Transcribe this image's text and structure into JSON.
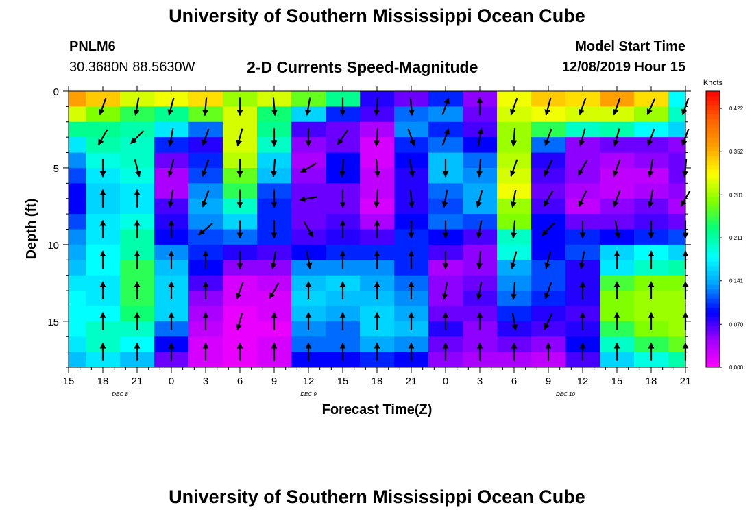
{
  "page": {
    "title_top": "University of Southern Mississippi Ocean Cube",
    "title_bottom": "University of Southern Mississippi Ocean Cube",
    "station": "PNLM6",
    "coords": "30.3680N 88.5630W",
    "subtitle": "2-D Currents Speed-Magnitude",
    "model_label": "Model Start Time",
    "model_time": "12/08/2019 Hour 15"
  },
  "chart_data": {
    "type": "heatmap",
    "title": "2-D Currents Speed-Magnitude",
    "xlabel": "Forecast Time(Z)",
    "ylabel": "Depth (ft)",
    "x_hours_from_start": [
      0,
      54
    ],
    "xlim_hours": [
      0,
      54
    ],
    "x_tick_labels": [
      "15",
      "18",
      "21",
      "0",
      "3",
      "6",
      "9",
      "12",
      "15",
      "18",
      "21",
      "0",
      "3",
      "6",
      "9",
      "12",
      "15",
      "18",
      "21"
    ],
    "x_date_labels": [
      {
        "label": "DEC 8",
        "hour": 4.5
      },
      {
        "label": "DEC 9",
        "hour": 21
      },
      {
        "label": "DEC 10",
        "hour": 43.5
      }
    ],
    "y_ticks": [
      0,
      5,
      10,
      15
    ],
    "ylim_ft": [
      0,
      18
    ],
    "y_inverted": true,
    "colorbar": {
      "unit": "Knots",
      "min": 0.0,
      "max": 0.45,
      "tick_values": [
        0.0,
        0.07,
        0.141,
        0.211,
        0.281,
        0.352,
        0.422
      ],
      "tick_labels": [
        "0.000",
        "0.070",
        "0.141",
        "0.211",
        "0.281",
        "0.352",
        "0.422"
      ],
      "colors": [
        "#ff00ff",
        "#a000ff",
        "#0000ff",
        "#00a0ff",
        "#00ffff",
        "#00ff80",
        "#80ff00",
        "#ffff00",
        "#ffa000",
        "#ff6000",
        "#ff0000"
      ]
    },
    "depth_levels_ft": [
      0.5,
      1.5,
      2.5,
      3.5,
      4.5,
      5.5,
      6.5,
      7.5,
      8.5,
      9.5,
      10.5,
      11.5,
      12.5,
      13.5,
      14.5,
      15.5,
      16.5,
      17.5
    ],
    "time_hours": [
      0,
      3,
      6,
      9,
      12,
      15,
      18,
      21,
      24,
      27,
      30,
      33,
      36,
      39,
      42,
      45,
      48,
      51,
      54
    ],
    "speed_knots": [
      [
        0.36,
        0.34,
        0.3,
        0.31,
        0.33,
        0.28,
        0.3,
        0.26,
        0.22,
        0.08,
        0.06,
        0.1,
        0.05,
        0.31,
        0.34,
        0.33,
        0.36,
        0.33,
        0.18
      ],
      [
        0.3,
        0.27,
        0.24,
        0.22,
        0.26,
        0.3,
        0.23,
        0.16,
        0.1,
        0.07,
        0.12,
        0.13,
        0.06,
        0.3,
        0.31,
        0.3,
        0.3,
        0.28,
        0.2
      ],
      [
        0.22,
        0.22,
        0.21,
        0.17,
        0.12,
        0.3,
        0.22,
        0.07,
        0.06,
        0.04,
        0.13,
        0.1,
        0.07,
        0.28,
        0.24,
        0.2,
        0.21,
        0.18,
        0.16
      ],
      [
        0.17,
        0.21,
        0.2,
        0.1,
        0.08,
        0.3,
        0.2,
        0.05,
        0.06,
        0.02,
        0.1,
        0.12,
        0.09,
        0.28,
        0.12,
        0.05,
        0.06,
        0.06,
        0.05
      ],
      [
        0.13,
        0.19,
        0.2,
        0.06,
        0.1,
        0.29,
        0.16,
        0.04,
        0.09,
        0.02,
        0.09,
        0.15,
        0.12,
        0.29,
        0.08,
        0.05,
        0.04,
        0.05,
        0.06
      ],
      [
        0.11,
        0.17,
        0.19,
        0.04,
        0.11,
        0.26,
        0.15,
        0.05,
        0.09,
        0.03,
        0.08,
        0.15,
        0.13,
        0.3,
        0.07,
        0.05,
        0.03,
        0.03,
        0.06
      ],
      [
        0.09,
        0.16,
        0.17,
        0.04,
        0.13,
        0.24,
        0.11,
        0.06,
        0.06,
        0.03,
        0.08,
        0.12,
        0.14,
        0.31,
        0.06,
        0.04,
        0.03,
        0.04,
        0.05
      ],
      [
        0.09,
        0.16,
        0.17,
        0.07,
        0.14,
        0.2,
        0.1,
        0.06,
        0.06,
        0.02,
        0.08,
        0.11,
        0.14,
        0.28,
        0.07,
        0.03,
        0.05,
        0.06,
        0.04
      ],
      [
        0.11,
        0.17,
        0.19,
        0.08,
        0.13,
        0.16,
        0.1,
        0.06,
        0.07,
        0.04,
        0.09,
        0.12,
        0.11,
        0.27,
        0.09,
        0.06,
        0.06,
        0.07,
        0.06
      ],
      [
        0.13,
        0.17,
        0.21,
        0.09,
        0.11,
        0.12,
        0.1,
        0.07,
        0.08,
        0.07,
        0.1,
        0.09,
        0.07,
        0.2,
        0.09,
        0.1,
        0.09,
        0.1,
        0.11
      ],
      [
        0.14,
        0.18,
        0.21,
        0.13,
        0.1,
        0.08,
        0.07,
        0.09,
        0.1,
        0.1,
        0.1,
        0.07,
        0.05,
        0.19,
        0.09,
        0.11,
        0.16,
        0.18,
        0.16
      ],
      [
        0.15,
        0.18,
        0.24,
        0.15,
        0.09,
        0.05,
        0.05,
        0.13,
        0.13,
        0.13,
        0.1,
        0.04,
        0.05,
        0.14,
        0.11,
        0.08,
        0.17,
        0.2,
        0.21
      ],
      [
        0.17,
        0.17,
        0.24,
        0.16,
        0.07,
        0.02,
        0.03,
        0.15,
        0.16,
        0.14,
        0.12,
        0.05,
        0.06,
        0.13,
        0.11,
        0.08,
        0.25,
        0.27,
        0.27
      ],
      [
        0.18,
        0.17,
        0.24,
        0.16,
        0.05,
        0.02,
        0.02,
        0.16,
        0.15,
        0.15,
        0.13,
        0.05,
        0.07,
        0.12,
        0.1,
        0.08,
        0.27,
        0.28,
        0.28
      ],
      [
        0.18,
        0.18,
        0.23,
        0.16,
        0.04,
        0.01,
        0.02,
        0.15,
        0.14,
        0.16,
        0.14,
        0.06,
        0.06,
        0.1,
        0.08,
        0.07,
        0.27,
        0.28,
        0.28
      ],
      [
        0.18,
        0.2,
        0.2,
        0.12,
        0.03,
        0.01,
        0.01,
        0.13,
        0.12,
        0.16,
        0.15,
        0.08,
        0.05,
        0.08,
        0.07,
        0.08,
        0.24,
        0.27,
        0.28
      ],
      [
        0.17,
        0.2,
        0.18,
        0.09,
        0.02,
        0.01,
        0.02,
        0.12,
        0.12,
        0.14,
        0.13,
        0.06,
        0.05,
        0.06,
        0.05,
        0.09,
        0.2,
        0.24,
        0.26
      ],
      [
        0.15,
        0.17,
        0.15,
        0.06,
        0.02,
        0.01,
        0.02,
        0.09,
        0.09,
        0.1,
        0.09,
        0.05,
        0.04,
        0.04,
        0.03,
        0.07,
        0.16,
        0.19,
        0.21
      ]
    ],
    "vector_depths_ft": [
      1,
      3,
      5,
      7,
      9,
      11,
      13,
      15,
      17
    ],
    "vector_times_hours": [
      3,
      6,
      9,
      12,
      15,
      18,
      21,
      24,
      27,
      30,
      33,
      36,
      39,
      42,
      45,
      48,
      51,
      54
    ],
    "vector_direction_deg": [
      [
        200,
        190,
        195,
        185,
        180,
        175,
        190,
        180,
        185,
        175,
        20,
        0,
        200,
        195,
        200,
        200,
        205,
        200
      ],
      [
        210,
        225,
        190,
        200,
        195,
        180,
        180,
        215,
        185,
        160,
        20,
        10,
        185,
        200,
        195,
        195,
        200,
        200
      ],
      [
        180,
        165,
        195,
        200,
        180,
        185,
        240,
        185,
        175,
        170,
        180,
        185,
        200,
        205,
        210,
        200,
        190,
        185
      ],
      [
        0,
        0,
        190,
        200,
        180,
        180,
        260,
        180,
        185,
        175,
        190,
        195,
        190,
        210,
        205,
        200,
        190,
        210
      ],
      [
        0,
        0,
        0,
        230,
        180,
        180,
        150,
        0,
        0,
        180,
        180,
        190,
        185,
        225,
        180,
        170,
        180,
        180
      ],
      [
        0,
        0,
        0,
        0,
        180,
        190,
        170,
        0,
        0,
        0,
        180,
        185,
        195,
        195,
        190,
        0,
        0,
        0
      ],
      [
        0,
        0,
        0,
        0,
        200,
        210,
        0,
        0,
        0,
        0,
        190,
        190,
        185,
        200,
        0,
        0,
        0,
        0
      ],
      [
        0,
        0,
        0,
        0,
        195,
        0,
        0,
        0,
        0,
        0,
        0,
        0,
        170,
        205,
        0,
        0,
        0,
        0
      ],
      [
        0,
        0,
        0,
        0,
        0,
        0,
        0,
        0,
        0,
        0,
        0,
        0,
        0,
        0,
        0,
        0,
        0,
        0
      ]
    ]
  }
}
